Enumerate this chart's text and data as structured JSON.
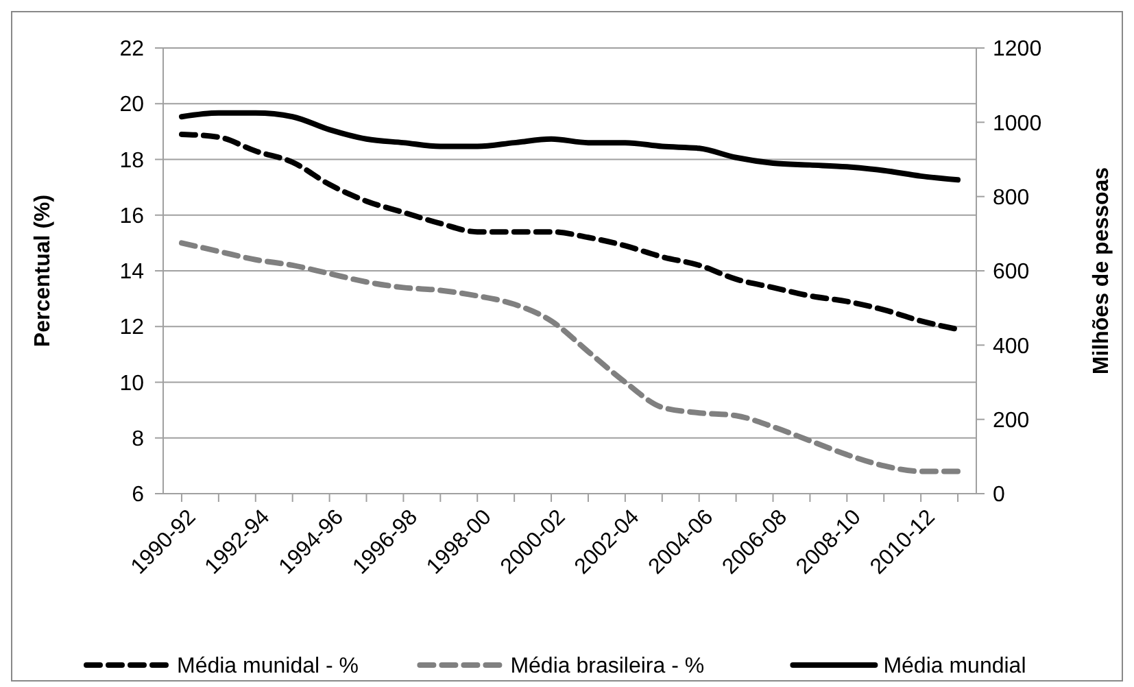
{
  "chart_data": {
    "type": "line",
    "ylabel": "Percentual (%)",
    "y2label": "Milhões de pessoas",
    "categories": [
      "1990-92",
      null,
      "1992-94",
      null,
      "1994-96",
      null,
      "1996-98",
      null,
      "1998-00",
      null,
      "2000-02",
      null,
      "2002-04",
      null,
      "2004-06",
      null,
      "2006-08",
      null,
      "2008-10",
      null,
      "2010-12",
      null
    ],
    "series": [
      {
        "name": "Média munidal - %",
        "color": "#000000",
        "line_style": "dashed",
        "values": [
          18.9,
          18.8,
          18.3,
          17.9,
          17.1,
          16.5,
          16.1,
          15.7,
          15.4,
          15.4,
          15.4,
          15.2,
          14.9,
          14.5,
          14.2,
          13.7,
          13.4,
          13.1,
          12.9,
          12.6,
          12.2,
          11.9
        ]
      },
      {
        "name": "Média brasileira - %",
        "color": "#808080",
        "line_style": "dashed",
        "values": [
          15.0,
          14.7,
          14.4,
          14.2,
          13.9,
          13.6,
          13.4,
          13.3,
          13.1,
          12.8,
          12.2,
          11.1,
          10.0,
          9.1,
          8.9,
          8.8,
          8.4,
          7.9,
          7.4,
          7.0,
          6.8,
          6.8
        ]
      },
      {
        "name": "Média mundial",
        "color": "#000000",
        "line_style": "solid",
        "axis": "y2",
        "values": [
          1015,
          1025,
          1025,
          1015,
          980,
          955,
          945,
          935,
          935,
          945,
          955,
          945,
          945,
          935,
          930,
          905,
          890,
          885,
          880,
          870,
          855,
          845
        ]
      }
    ],
    "ylim": [
      6,
      22
    ],
    "yticks": [
      6,
      8,
      10,
      12,
      14,
      16,
      18,
      20,
      22
    ],
    "y2lim": [
      0,
      1200
    ],
    "y2ticks": [
      0,
      200,
      400,
      600,
      800,
      1000,
      1200
    ],
    "grid": "y",
    "legend": "bottom"
  }
}
